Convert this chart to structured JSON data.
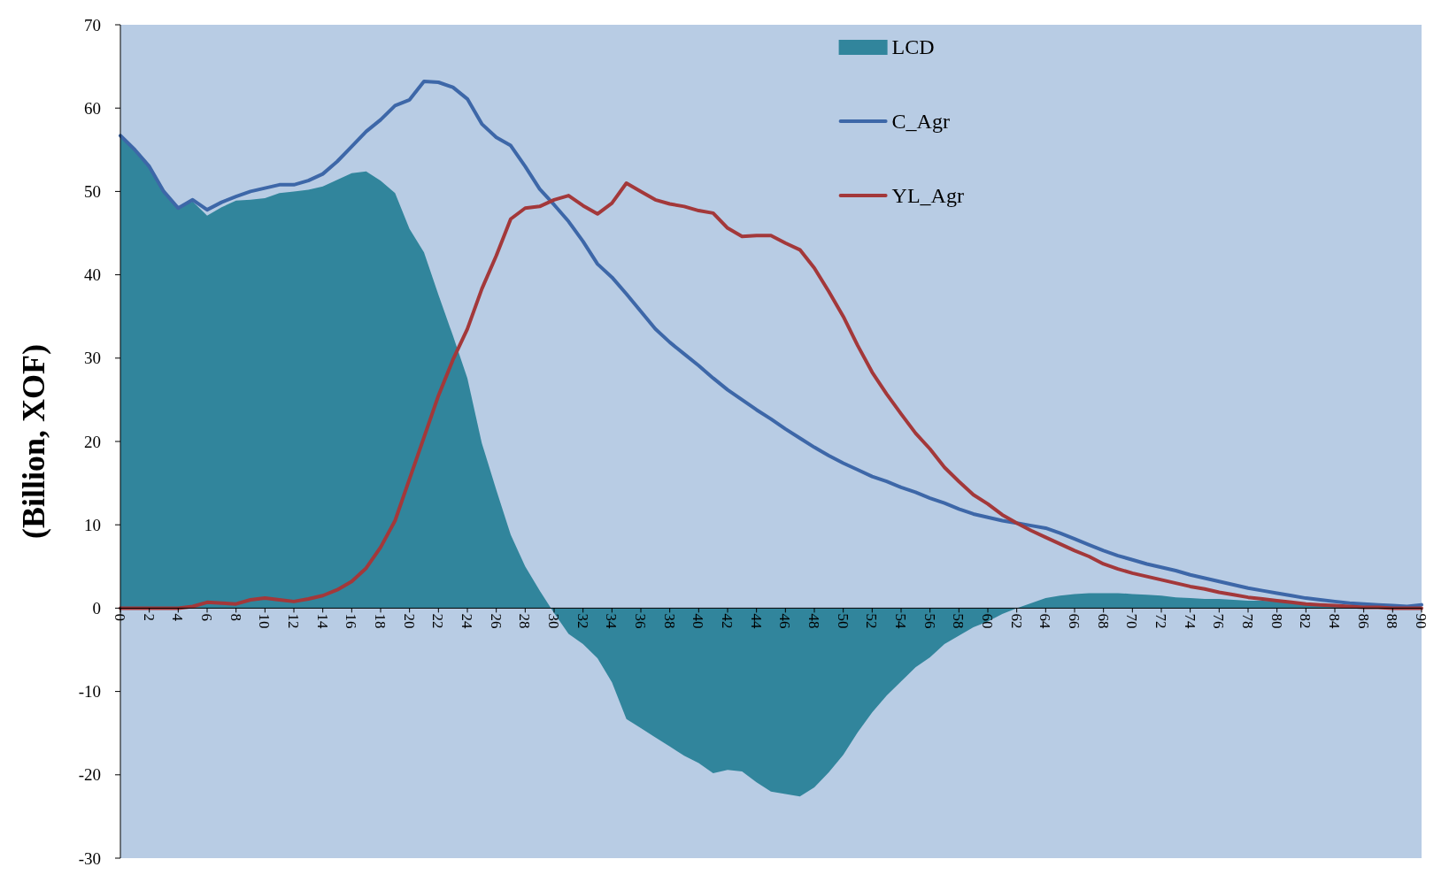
{
  "chart_data": {
    "type": "line",
    "ylabel": "(Billion, XOF)",
    "x": [
      0,
      1,
      2,
      3,
      4,
      5,
      6,
      7,
      8,
      9,
      10,
      11,
      12,
      13,
      14,
      15,
      16,
      17,
      18,
      19,
      20,
      21,
      22,
      23,
      24,
      25,
      26,
      27,
      28,
      29,
      30,
      31,
      32,
      33,
      34,
      35,
      36,
      37,
      38,
      39,
      40,
      41,
      42,
      43,
      44,
      45,
      46,
      47,
      48,
      49,
      50,
      51,
      52,
      53,
      54,
      55,
      56,
      57,
      58,
      59,
      60,
      61,
      62,
      63,
      64,
      65,
      66,
      67,
      68,
      69,
      70,
      71,
      72,
      73,
      74,
      75,
      76,
      77,
      78,
      79,
      80,
      81,
      82,
      83,
      84,
      85,
      86,
      87,
      88,
      89,
      90
    ],
    "xlim": [
      0,
      90
    ],
    "xticks": [
      0,
      2,
      4,
      6,
      8,
      10,
      12,
      14,
      16,
      18,
      20,
      22,
      24,
      26,
      28,
      30,
      32,
      34,
      36,
      38,
      40,
      42,
      44,
      46,
      48,
      50,
      52,
      54,
      56,
      58,
      60,
      62,
      64,
      66,
      68,
      70,
      72,
      74,
      76,
      78,
      80,
      82,
      84,
      86,
      88,
      90
    ],
    "ylim": [
      -30,
      70
    ],
    "yticks": [
      -30,
      -20,
      -10,
      0,
      10,
      20,
      30,
      40,
      50,
      60,
      70
    ],
    "grid": false,
    "legend": "top",
    "series": [
      {
        "name": "LCD",
        "type": "area",
        "color": "#31859c",
        "values": [
          56.7,
          55,
          53,
          50,
          48,
          48.8,
          47.1,
          48.1,
          48.9,
          49,
          49.2,
          49.8,
          50,
          50.2,
          50.6,
          51.4,
          52.2,
          52.4,
          51.3,
          49.8,
          45.5,
          42.7,
          37.6,
          32.7,
          27.6,
          19.8,
          14.2,
          8.8,
          5,
          2.1,
          -0.6,
          -3.1,
          -4.3,
          -6,
          -8.9,
          -13.3,
          -14.4,
          -15.5,
          -16.6,
          -17.7,
          -18.6,
          -19.8,
          -19.4,
          -19.6,
          -20.9,
          -22,
          -22.3,
          -22.6,
          -21.5,
          -19.7,
          -17.6,
          -14.9,
          -12.5,
          -10.5,
          -8.8,
          -7.1,
          -5.9,
          -4.3,
          -3.3,
          -2.3,
          -1.6,
          -0.7,
          0,
          0.6,
          1.2,
          1.5,
          1.7,
          1.8,
          1.8,
          1.8,
          1.7,
          1.6,
          1.5,
          1.3,
          1.2,
          1.1,
          1.1,
          1,
          0.9,
          0.9,
          0.8,
          0.7,
          0.6,
          0.5,
          0.4,
          0.3,
          0.3,
          0.3,
          0.3,
          0.2,
          0.4
        ]
      },
      {
        "name": "C_Agr",
        "color": "#3d67a8",
        "values": [
          56.7,
          55,
          53,
          50,
          48,
          49,
          47.8,
          48.7,
          49.4,
          50,
          50.4,
          50.8,
          50.8,
          51.3,
          52.1,
          53.6,
          55.4,
          57.2,
          58.6,
          60.3,
          61,
          63.2,
          63.1,
          62.5,
          61.1,
          58.1,
          56.5,
          55.5,
          53,
          50.3,
          48.4,
          46.4,
          44,
          41.3,
          39.7,
          37.7,
          35.6,
          33.5,
          31.9,
          30.5,
          29.1,
          27.6,
          26.2,
          25,
          23.8,
          22.7,
          21.5,
          20.4,
          19.3,
          18.3,
          17.4,
          16.6,
          15.8,
          15.2,
          14.5,
          13.9,
          13.2,
          12.6,
          11.9,
          11.3,
          10.9,
          10.5,
          10.2,
          9.9,
          9.6,
          9,
          8.3,
          7.6,
          6.9,
          6.3,
          5.8,
          5.3,
          4.9,
          4.5,
          4,
          3.6,
          3.2,
          2.8,
          2.4,
          2.1,
          1.8,
          1.5,
          1.2,
          1,
          0.8,
          0.6,
          0.5,
          0.4,
          0.3,
          0.2,
          0.4
        ]
      },
      {
        "name": "YL_Agr",
        "color": "#a3383a",
        "values": [
          0,
          0,
          0,
          0,
          0,
          0.2,
          0.7,
          0.6,
          0.5,
          1,
          1.2,
          1,
          0.8,
          1.1,
          1.5,
          2.2,
          3.2,
          4.8,
          7.3,
          10.5,
          15.5,
          20.5,
          25.5,
          29.8,
          33.5,
          38.3,
          42.3,
          46.7,
          48,
          48.2,
          49,
          49.5,
          48.3,
          47.3,
          48.6,
          51,
          50,
          49,
          48.5,
          48.2,
          47.7,
          47.4,
          45.6,
          44.6,
          44.7,
          44.7,
          43.8,
          43,
          40.8,
          38,
          35,
          31.5,
          28.3,
          25.7,
          23.3,
          21,
          19.1,
          16.9,
          15.2,
          13.6,
          12.5,
          11.2,
          10.2,
          9.3,
          8.5,
          7.7,
          6.9,
          6.2,
          5.3,
          4.7,
          4.2,
          3.8,
          3.4,
          3,
          2.6,
          2.3,
          1.9,
          1.6,
          1.3,
          1.1,
          0.9,
          0.7,
          0.5,
          0.4,
          0.3,
          0.2,
          0.1,
          0.1,
          0,
          0,
          0
        ]
      }
    ]
  }
}
